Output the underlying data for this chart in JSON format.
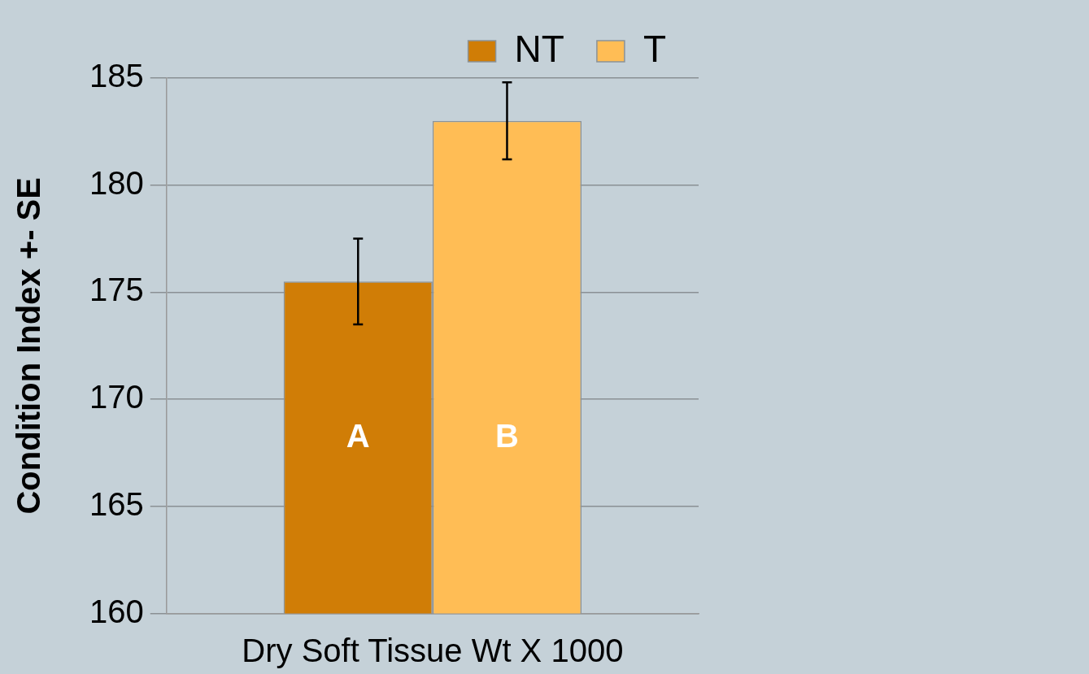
{
  "chart_data": {
    "type": "bar",
    "xlabel": "Dry Soft Tissue Wt X 1000",
    "ylabel": "Condition Index +- SE",
    "categories": [
      null
    ],
    "series": [
      {
        "name": "NT",
        "color": "#d07d06",
        "values": [
          175.5
        ],
        "errors": [
          2
        ]
      },
      {
        "name": "T",
        "color": "#ffbd55",
        "values": [
          183
        ],
        "errors": [
          1.8
        ]
      }
    ],
    "annotations": [
      "A",
      "B"
    ],
    "ylim": [
      160,
      185
    ],
    "yticks": [
      160,
      165,
      170,
      175,
      180,
      185
    ],
    "grid": "y",
    "legend": "top right"
  }
}
